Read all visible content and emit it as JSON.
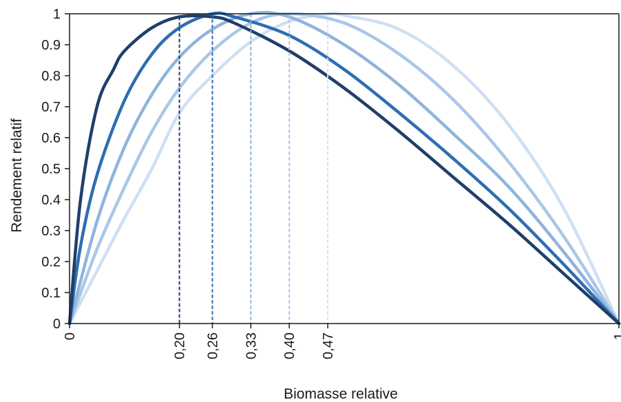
{
  "chart_data": {
    "type": "line",
    "title": "",
    "xlabel": "Biomasse relative",
    "ylabel": "Rendement relatif",
    "xlim": [
      0,
      1
    ],
    "ylim": [
      0,
      1
    ],
    "grid": false,
    "legend": "none",
    "y_ticks": [
      "0",
      "0.1",
      "0.2",
      "0.3",
      "0.4",
      "0.5",
      "0.6",
      "0.7",
      "0.8",
      "0.9",
      "1"
    ],
    "x_ticks": [
      {
        "value": 0,
        "label": "0"
      },
      {
        "value": 0.2,
        "label": "0,20"
      },
      {
        "value": 0.26,
        "label": "0,26"
      },
      {
        "value": 0.33,
        "label": "0,33"
      },
      {
        "value": 0.4,
        "label": "0,40"
      },
      {
        "value": 0.47,
        "label": "0,47"
      },
      {
        "value": 1,
        "label": "1"
      }
    ],
    "series": [
      {
        "peak_x": 0.2,
        "color": "#1f3f6a",
        "x": [
          0,
          0.02,
          0.05,
          0.08,
          0.1,
          0.15,
          0.2,
          0.26,
          0.3,
          0.4,
          0.5,
          0.6,
          0.7,
          0.8,
          0.9,
          1.0
        ],
        "y": [
          0,
          0.4,
          0.7,
          0.82,
          0.88,
          0.955,
          0.99,
          0.99,
          0.97,
          0.88,
          0.76,
          0.62,
          0.47,
          0.32,
          0.16,
          0
        ]
      },
      {
        "peak_x": 0.26,
        "color": "#2e6db3",
        "x": [
          0,
          0.02,
          0.05,
          0.1,
          0.15,
          0.2,
          0.26,
          0.3,
          0.4,
          0.5,
          0.6,
          0.7,
          0.8,
          0.9,
          1.0
        ],
        "y": [
          0,
          0.25,
          0.48,
          0.72,
          0.87,
          0.955,
          1.0,
          0.99,
          0.93,
          0.82,
          0.68,
          0.53,
          0.37,
          0.19,
          0
        ]
      },
      {
        "peak_x": 0.33,
        "color": "#8fb4dd",
        "x": [
          0,
          0.05,
          0.1,
          0.15,
          0.2,
          0.26,
          0.33,
          0.4,
          0.5,
          0.6,
          0.7,
          0.8,
          0.9,
          1.0
        ],
        "y": [
          0,
          0.33,
          0.57,
          0.74,
          0.86,
          0.95,
          1.0,
          0.99,
          0.9,
          0.77,
          0.61,
          0.44,
          0.23,
          0
        ]
      },
      {
        "peak_x": 0.4,
        "color": "#a9c7e8",
        "x": [
          0,
          0.05,
          0.1,
          0.15,
          0.2,
          0.26,
          0.33,
          0.4,
          0.5,
          0.6,
          0.7,
          0.8,
          0.9,
          1.0
        ],
        "y": [
          0,
          0.24,
          0.44,
          0.62,
          0.76,
          0.88,
          0.97,
          1.0,
          0.97,
          0.87,
          0.72,
          0.52,
          0.28,
          0
        ]
      },
      {
        "peak_x": 0.47,
        "color": "#cfe0f3",
        "x": [
          0,
          0.05,
          0.1,
          0.15,
          0.2,
          0.26,
          0.33,
          0.4,
          0.47,
          0.5,
          0.6,
          0.7,
          0.8,
          0.9,
          1.0
        ],
        "y": [
          0,
          0.17,
          0.34,
          0.5,
          0.68,
          0.8,
          0.91,
          0.975,
          1.0,
          0.995,
          0.95,
          0.83,
          0.64,
          0.37,
          0
        ]
      }
    ]
  }
}
